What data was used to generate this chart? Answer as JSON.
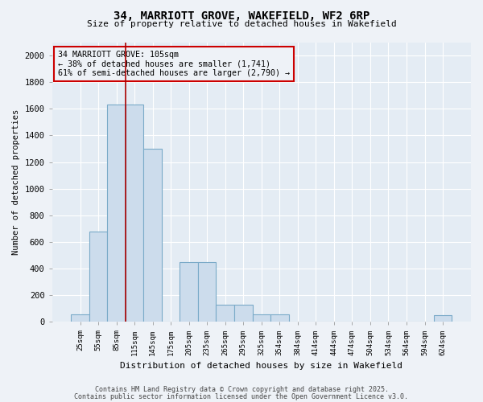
{
  "title_line1": "34, MARRIOTT GROVE, WAKEFIELD, WF2 6RP",
  "title_line2": "Size of property relative to detached houses in Wakefield",
  "xlabel": "Distribution of detached houses by size in Wakefield",
  "ylabel": "Number of detached properties",
  "categories": [
    "25sqm",
    "55sqm",
    "85sqm",
    "115sqm",
    "145sqm",
    "175sqm",
    "205sqm",
    "235sqm",
    "265sqm",
    "295sqm",
    "325sqm",
    "354sqm",
    "384sqm",
    "414sqm",
    "444sqm",
    "474sqm",
    "504sqm",
    "534sqm",
    "564sqm",
    "594sqm",
    "624sqm"
  ],
  "values": [
    55,
    680,
    1630,
    1630,
    1300,
    0,
    450,
    450,
    130,
    130,
    55,
    55,
    0,
    0,
    0,
    0,
    0,
    0,
    0,
    0,
    50
  ],
  "bar_color": "#ccdcec",
  "bar_edge_color": "#7aaac8",
  "vline_x": 2.5,
  "vline_color": "#aa0000",
  "annotation_box_text": "34 MARRIOTT GROVE: 105sqm\n← 38% of detached houses are smaller (1,741)\n61% of semi-detached houses are larger (2,790) →",
  "annotation_box_color": "#cc0000",
  "ylim": [
    0,
    2100
  ],
  "yticks": [
    0,
    200,
    400,
    600,
    800,
    1000,
    1200,
    1400,
    1600,
    1800,
    2000
  ],
  "footer_line1": "Contains HM Land Registry data © Crown copyright and database right 2025.",
  "footer_line2": "Contains public sector information licensed under the Open Government Licence v3.0.",
  "bg_color": "#eef2f7",
  "plot_bg_color": "#e4ecf4",
  "grid_color": "#ffffff",
  "spine_color": "#aaaaaa"
}
